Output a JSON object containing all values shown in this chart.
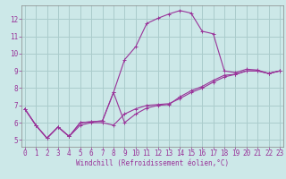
{
  "xlabel": "Windchill (Refroidissement éolien,°C)",
  "bg_color": "#cce8e8",
  "grid_color": "#aacccc",
  "line_color": "#993399",
  "line1_y": [
    6.8,
    5.85,
    5.1,
    5.75,
    5.2,
    6.0,
    6.05,
    6.1,
    7.75,
    6.0,
    6.5,
    6.85,
    7.0,
    7.05,
    7.5,
    7.85,
    8.1,
    8.45,
    8.75,
    8.8,
    9.0,
    9.0,
    8.85,
    9.0
  ],
  "line2_y": [
    6.8,
    5.85,
    5.1,
    5.75,
    5.2,
    6.0,
    6.05,
    6.1,
    7.75,
    9.65,
    10.4,
    11.75,
    12.05,
    12.3,
    12.5,
    12.35,
    11.3,
    11.15,
    9.0,
    8.9,
    9.1,
    9.05,
    8.85,
    9.0
  ],
  "line3_y": [
    6.8,
    5.85,
    5.1,
    5.75,
    5.2,
    5.85,
    6.0,
    6.0,
    5.85,
    6.5,
    6.8,
    7.0,
    7.05,
    7.1,
    7.4,
    7.75,
    8.0,
    8.35,
    8.65,
    8.8,
    9.0,
    9.0,
    8.85,
    9.0
  ],
  "x": [
    0,
    1,
    2,
    3,
    4,
    5,
    6,
    7,
    8,
    9,
    10,
    11,
    12,
    13,
    14,
    15,
    16,
    17,
    18,
    19,
    20,
    21,
    22,
    23
  ],
  "ylim": [
    4.6,
    12.8
  ],
  "xlim": [
    -0.3,
    23.3
  ],
  "yticks": [
    5,
    6,
    7,
    8,
    9,
    10,
    11,
    12
  ],
  "xticks": [
    0,
    1,
    2,
    3,
    4,
    5,
    6,
    7,
    8,
    9,
    10,
    11,
    12,
    13,
    14,
    15,
    16,
    17,
    18,
    19,
    20,
    21,
    22,
    23
  ],
  "tick_fontsize": 5.5,
  "xlabel_fontsize": 5.5
}
